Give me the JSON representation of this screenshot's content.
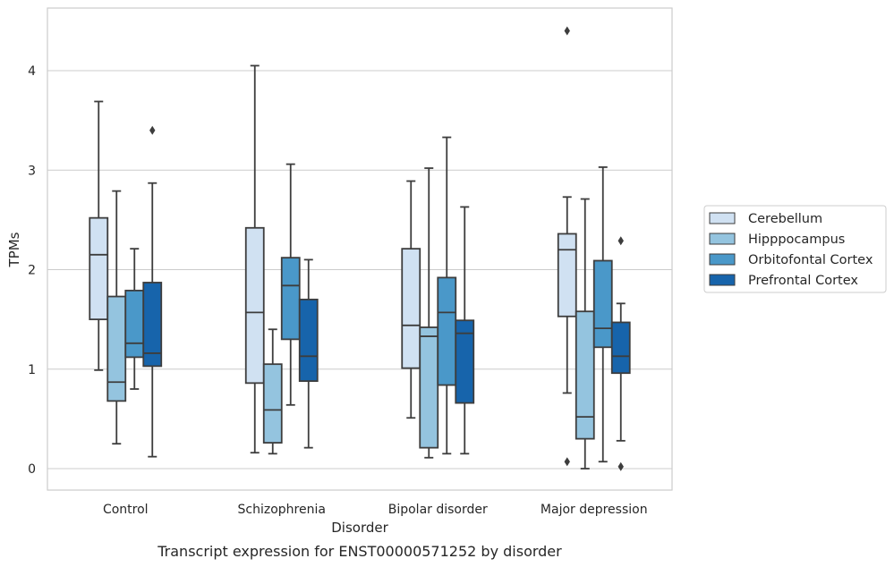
{
  "chart_data": {
    "type": "box",
    "title": "",
    "caption": "Transcript expression for ENST00000571252 by disorder",
    "xlabel": "Disorder",
    "ylabel": "TPMs",
    "ylim": [
      -0.2,
      4.63
    ],
    "yticks": [
      0,
      1,
      2,
      3,
      4
    ],
    "ytick_labels": [
      "0",
      "1",
      "2",
      "3",
      "4"
    ],
    "grid": "horizontal",
    "legend_position": "right",
    "categories": [
      "Control",
      "Schizophrenia",
      "Bipolar disorder",
      "Major depression"
    ],
    "series": [
      {
        "name": "Cerebellum",
        "color": "#d0e1f2",
        "boxes": [
          {
            "whislo": 0.99,
            "q1": 1.5,
            "med": 2.15,
            "q3": 2.52,
            "whishi": 3.69,
            "fliers": []
          },
          {
            "whislo": 0.16,
            "q1": 0.86,
            "med": 1.57,
            "q3": 2.42,
            "whishi": 4.05,
            "fliers": []
          },
          {
            "whislo": 0.51,
            "q1": 1.01,
            "med": 1.44,
            "q3": 2.21,
            "whishi": 2.89,
            "fliers": []
          },
          {
            "whislo": 0.76,
            "q1": 1.53,
            "med": 2.2,
            "q3": 2.36,
            "whishi": 2.73,
            "fliers": [
              0.07,
              4.4
            ]
          }
        ]
      },
      {
        "name": "Hipppocampus",
        "color": "#94c4df",
        "boxes": [
          {
            "whislo": 0.25,
            "q1": 0.68,
            "med": 0.87,
            "q3": 1.73,
            "whishi": 2.79,
            "fliers": []
          },
          {
            "whislo": 0.15,
            "q1": 0.26,
            "med": 0.59,
            "q3": 1.05,
            "whishi": 1.4,
            "fliers": []
          },
          {
            "whislo": 0.11,
            "q1": 0.21,
            "med": 1.33,
            "q3": 1.42,
            "whishi": 3.02,
            "fliers": []
          },
          {
            "whislo": 0.0,
            "q1": 0.3,
            "med": 0.52,
            "q3": 1.58,
            "whishi": 2.71,
            "fliers": []
          }
        ]
      },
      {
        "name": "Orbitofontal Cortex",
        "color": "#4a98c9",
        "boxes": [
          {
            "whislo": 0.8,
            "q1": 1.12,
            "med": 1.26,
            "q3": 1.79,
            "whishi": 2.21,
            "fliers": []
          },
          {
            "whislo": 0.64,
            "q1": 1.3,
            "med": 1.84,
            "q3": 2.12,
            "whishi": 3.06,
            "fliers": []
          },
          {
            "whislo": 0.15,
            "q1": 0.84,
            "med": 1.57,
            "q3": 1.92,
            "whishi": 3.33,
            "fliers": []
          },
          {
            "whislo": 0.07,
            "q1": 1.22,
            "med": 1.41,
            "q3": 2.09,
            "whishi": 3.03,
            "fliers": []
          }
        ]
      },
      {
        "name": "Prefrontal Cortex",
        "color": "#1764ab",
        "boxes": [
          {
            "whislo": 0.12,
            "q1": 1.03,
            "med": 1.16,
            "q3": 1.87,
            "whishi": 2.87,
            "fliers": [
              3.4
            ]
          },
          {
            "whislo": 0.21,
            "q1": 0.88,
            "med": 1.13,
            "q3": 1.7,
            "whishi": 2.1,
            "fliers": []
          },
          {
            "whislo": 0.15,
            "q1": 0.66,
            "med": 1.36,
            "q3": 1.49,
            "whishi": 2.63,
            "fliers": []
          },
          {
            "whislo": 0.28,
            "q1": 0.96,
            "med": 1.13,
            "q3": 1.47,
            "whishi": 1.66,
            "fliers": [
              0.02,
              2.29
            ]
          }
        ]
      }
    ]
  },
  "colors": {
    "grid": "#cccccc",
    "frame": "#cccccc",
    "box_edge": "#3d3d3d"
  }
}
